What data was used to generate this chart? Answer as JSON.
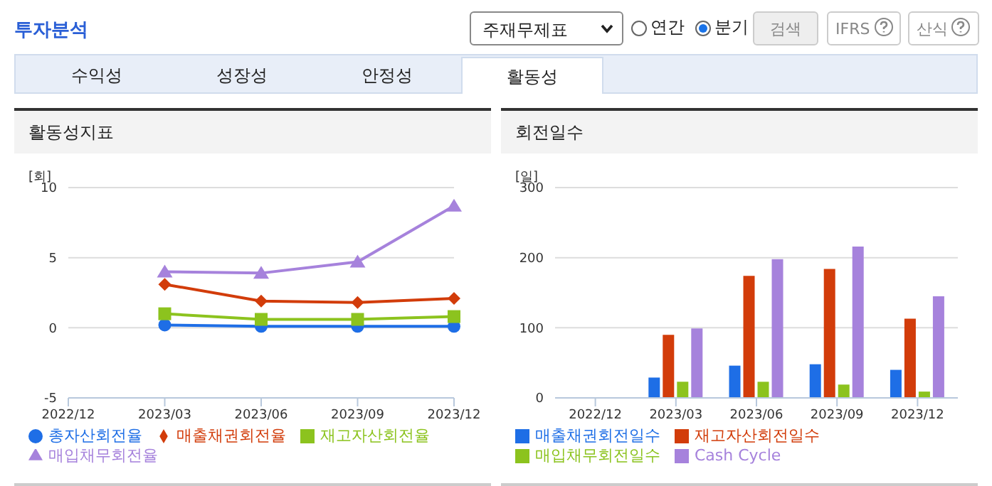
{
  "chart_data": [
    {
      "type": "line",
      "title": "활동성지표",
      "ylabel": "[회]",
      "annotations": [
        "투자분석",
        "주재무제표",
        "연간",
        "분기",
        "검색",
        "IFRS",
        "산식",
        "수익성",
        "성장성",
        "안정성",
        "활동성"
      ],
      "categories": [
        "2022/12",
        "2023/03",
        "2023/06",
        "2023/09",
        "2023/12"
      ],
      "series": [
        {
          "name": "총자산회전율",
          "color": "#1e6ee6",
          "marker": "circle",
          "values": [
            null,
            0.2,
            0.1,
            0.1,
            0.1
          ]
        },
        {
          "name": "매출채권회전율",
          "color": "#d23c0a",
          "marker": "diamond",
          "values": [
            null,
            3.1,
            1.9,
            1.8,
            2.1
          ]
        },
        {
          "name": "재고자산회전율",
          "color": "#8cc31e",
          "marker": "square",
          "values": [
            null,
            1.0,
            0.6,
            0.6,
            0.8
          ]
        },
        {
          "name": "매입채무회전율",
          "color": "#a682dc",
          "marker": "triangle",
          "values": [
            null,
            4.0,
            3.9,
            4.7,
            8.7
          ]
        }
      ],
      "ylim": [
        -5,
        10
      ],
      "yticks": [
        -5,
        0,
        5,
        10
      ],
      "grid": "y",
      "legend": "bottom"
    },
    {
      "type": "bar",
      "title": "회전일수",
      "ylabel": "[일]",
      "categories": [
        "2022/12",
        "2023/03",
        "2023/06",
        "2023/09",
        "2023/12"
      ],
      "series": [
        {
          "name": "매출채권회전일수",
          "color": "#1e6ee6",
          "values": [
            null,
            29,
            46,
            48,
            40
          ]
        },
        {
          "name": "재고자산회전일수",
          "color": "#d23c0a",
          "values": [
            null,
            90,
            174,
            184,
            113
          ]
        },
        {
          "name": "매입채무회전일수",
          "color": "#8cc31e",
          "values": [
            null,
            23,
            23,
            19,
            9
          ]
        },
        {
          "name": "Cash Cycle",
          "color": "#a682dc",
          "values": [
            null,
            99,
            198,
            216,
            145
          ]
        }
      ],
      "ylim": [
        0,
        300
      ],
      "yticks": [
        0,
        100,
        200,
        300
      ],
      "grid": "y",
      "legend": "bottom"
    }
  ]
}
